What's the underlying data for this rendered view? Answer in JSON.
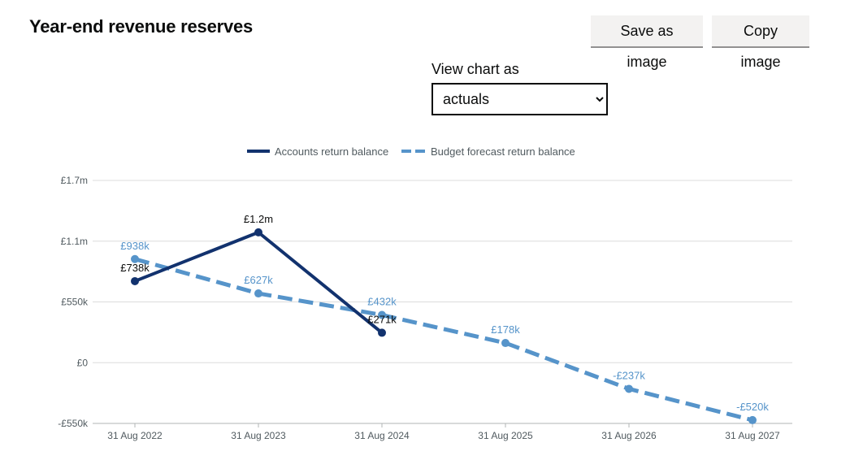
{
  "header": {
    "title": "Year-end revenue reserves",
    "save_button": "Save as image",
    "copy_button": "Copy image"
  },
  "view_select": {
    "label": "View chart as",
    "selected": "actuals",
    "options": [
      "actuals"
    ]
  },
  "colors": {
    "accounts": "#12326e",
    "budget": "#5694ca"
  },
  "chart_data": {
    "type": "line",
    "categories": [
      "31 Aug 2022",
      "31 Aug 2023",
      "31 Aug 2024",
      "31 Aug 2025",
      "31 Aug 2026",
      "31 Aug 2027"
    ],
    "ylim": [
      -550000,
      1650000
    ],
    "y_ticks": [
      {
        "value": 1650000,
        "label": "£1.7m"
      },
      {
        "value": 1100000,
        "label": "£1.1m"
      },
      {
        "value": 550000,
        "label": "£550k"
      },
      {
        "value": 0,
        "label": "£0"
      },
      {
        "value": -550000,
        "label": "-£550k"
      }
    ],
    "grid": true,
    "legend_position": "top-center",
    "series": [
      {
        "name": "Accounts return balance",
        "style": "solid",
        "values": [
          738000,
          1180000,
          271000,
          null,
          null,
          null
        ],
        "labels": [
          "£738k",
          "£1.2m",
          "£271k",
          null,
          null,
          null
        ]
      },
      {
        "name": "Budget forecast return balance",
        "style": "dashed",
        "values": [
          938000,
          627000,
          432000,
          178000,
          -237000,
          -520000
        ],
        "labels": [
          "£938k",
          "£627k",
          "£432k",
          "£178k",
          "-£237k",
          "-£520k"
        ]
      }
    ]
  }
}
